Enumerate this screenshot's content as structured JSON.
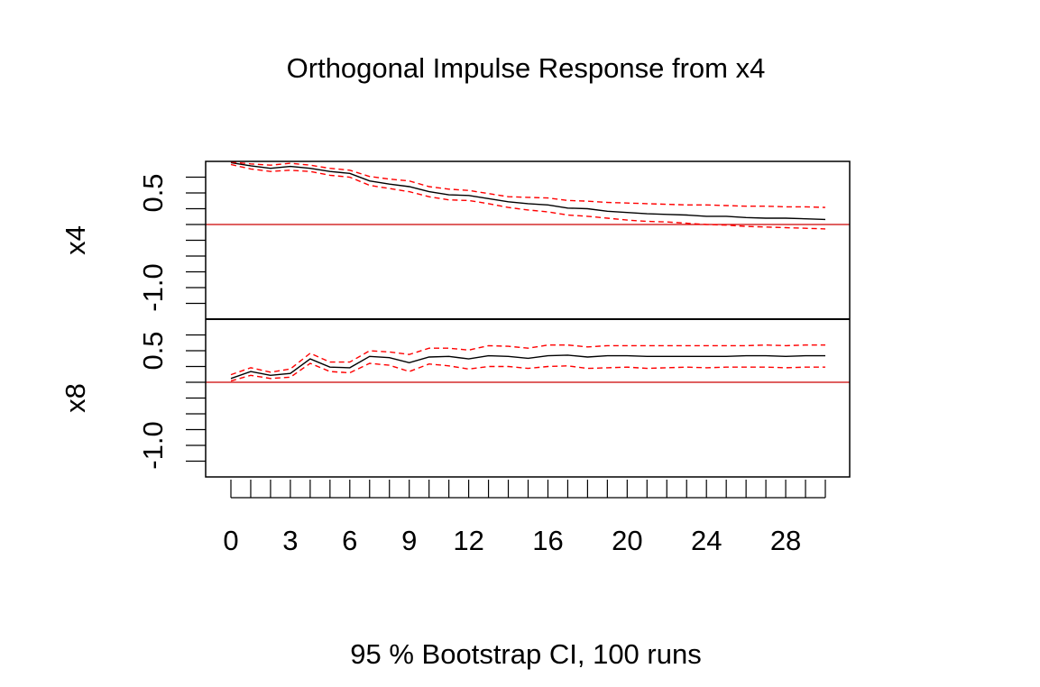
{
  "chart_data": {
    "type": "line",
    "title": "Orthogonal Impulse Response from x4",
    "caption": "95 % Bootstrap CI,  100 runs",
    "x": [
      0,
      1,
      2,
      3,
      4,
      5,
      6,
      7,
      8,
      9,
      10,
      11,
      12,
      13,
      14,
      15,
      16,
      17,
      18,
      19,
      20,
      21,
      22,
      23,
      24,
      25,
      26,
      27,
      28,
      29,
      30
    ],
    "xlim": [
      0,
      30
    ],
    "x_ticks": [
      0,
      1,
      2,
      3,
      4,
      5,
      6,
      7,
      8,
      9,
      10,
      11,
      12,
      13,
      14,
      15,
      16,
      17,
      18,
      19,
      20,
      21,
      22,
      23,
      24,
      25,
      26,
      27,
      28,
      29,
      30
    ],
    "x_tick_labels": [
      "0",
      "3",
      "6",
      "9",
      "12",
      "16",
      "20",
      "24",
      "28"
    ],
    "x_tick_label_values": [
      0,
      3,
      6,
      9,
      12,
      16,
      20,
      24,
      28
    ],
    "ylim": [
      -1.5,
      1.0
    ],
    "y_ticks": [
      -1.25,
      -1.0,
      -0.75,
      -0.5,
      -0.25,
      0,
      0.25,
      0.5,
      0.75
    ],
    "y_tick_labels": [
      "-1.0",
      "0.5"
    ],
    "y_tick_label_values": [
      -1.0,
      0.5
    ],
    "grid": false,
    "legend": "none",
    "colors": {
      "response": "#000000",
      "ci": "#ff0000",
      "zero_line": "#cc0000",
      "frame": "#000000"
    },
    "panels": [
      {
        "name": "x4",
        "series": [
          {
            "role": "response",
            "values": [
              0.98,
              0.93,
              0.89,
              0.92,
              0.89,
              0.84,
              0.81,
              0.69,
              0.64,
              0.6,
              0.52,
              0.47,
              0.46,
              0.41,
              0.36,
              0.33,
              0.31,
              0.26,
              0.25,
              0.21,
              0.19,
              0.17,
              0.16,
              0.15,
              0.13,
              0.13,
              0.11,
              0.1,
              0.1,
              0.09,
              0.08
            ]
          },
          {
            "role": "upper",
            "values": [
              0.99,
              0.96,
              0.94,
              0.97,
              0.94,
              0.89,
              0.86,
              0.76,
              0.72,
              0.69,
              0.6,
              0.56,
              0.54,
              0.49,
              0.44,
              0.43,
              0.42,
              0.38,
              0.37,
              0.35,
              0.34,
              0.33,
              0.32,
              0.31,
              0.31,
              0.3,
              0.29,
              0.29,
              0.28,
              0.28,
              0.27
            ]
          },
          {
            "role": "lower",
            "values": [
              0.95,
              0.88,
              0.84,
              0.86,
              0.84,
              0.78,
              0.75,
              0.62,
              0.57,
              0.52,
              0.44,
              0.39,
              0.38,
              0.33,
              0.27,
              0.23,
              0.2,
              0.15,
              0.13,
              0.1,
              0.07,
              0.05,
              0.04,
              0.02,
              0.0,
              -0.01,
              -0.03,
              -0.04,
              -0.05,
              -0.06,
              -0.07
            ]
          }
        ]
      },
      {
        "name": "x8",
        "series": [
          {
            "role": "response",
            "values": [
              0.06,
              0.17,
              0.11,
              0.14,
              0.37,
              0.24,
              0.23,
              0.41,
              0.39,
              0.31,
              0.4,
              0.41,
              0.37,
              0.42,
              0.41,
              0.38,
              0.42,
              0.43,
              0.4,
              0.42,
              0.42,
              0.41,
              0.41,
              0.41,
              0.41,
              0.41,
              0.42,
              0.42,
              0.41,
              0.42,
              0.42
            ]
          },
          {
            "role": "upper",
            "values": [
              0.12,
              0.23,
              0.16,
              0.21,
              0.46,
              0.32,
              0.32,
              0.5,
              0.48,
              0.44,
              0.54,
              0.54,
              0.51,
              0.58,
              0.57,
              0.54,
              0.59,
              0.59,
              0.56,
              0.58,
              0.58,
              0.58,
              0.58,
              0.58,
              0.58,
              0.58,
              0.58,
              0.59,
              0.58,
              0.59,
              0.59
            ]
          },
          {
            "role": "lower",
            "values": [
              0.02,
              0.11,
              0.06,
              0.08,
              0.3,
              0.17,
              0.15,
              0.3,
              0.27,
              0.17,
              0.29,
              0.26,
              0.21,
              0.25,
              0.25,
              0.22,
              0.25,
              0.26,
              0.22,
              0.23,
              0.24,
              0.22,
              0.23,
              0.24,
              0.23,
              0.24,
              0.24,
              0.24,
              0.23,
              0.24,
              0.24
            ]
          }
        ]
      }
    ]
  }
}
